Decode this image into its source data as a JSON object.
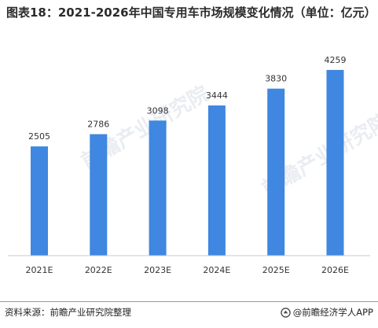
{
  "chart_data": {
    "type": "bar",
    "title": "图表18：2021-2026年中国专用车市场规模变化情况（单位：亿元）",
    "categories": [
      "2021E",
      "2022E",
      "2023E",
      "2024E",
      "2025E",
      "2026E"
    ],
    "values": [
      2505,
      2786,
      3098,
      3444,
      3830,
      4259
    ],
    "ylim": [
      0,
      4600
    ],
    "grid": false,
    "legend": "none",
    "bar_color": "#3f87e0",
    "label_color": "#333333",
    "axis_color": "#c8c8c8"
  },
  "footer": {
    "source": "资料来源：前瞻产业研究院整理",
    "brand": "@前瞻经济学人APP"
  },
  "watermark": "前瞻产业研究院"
}
